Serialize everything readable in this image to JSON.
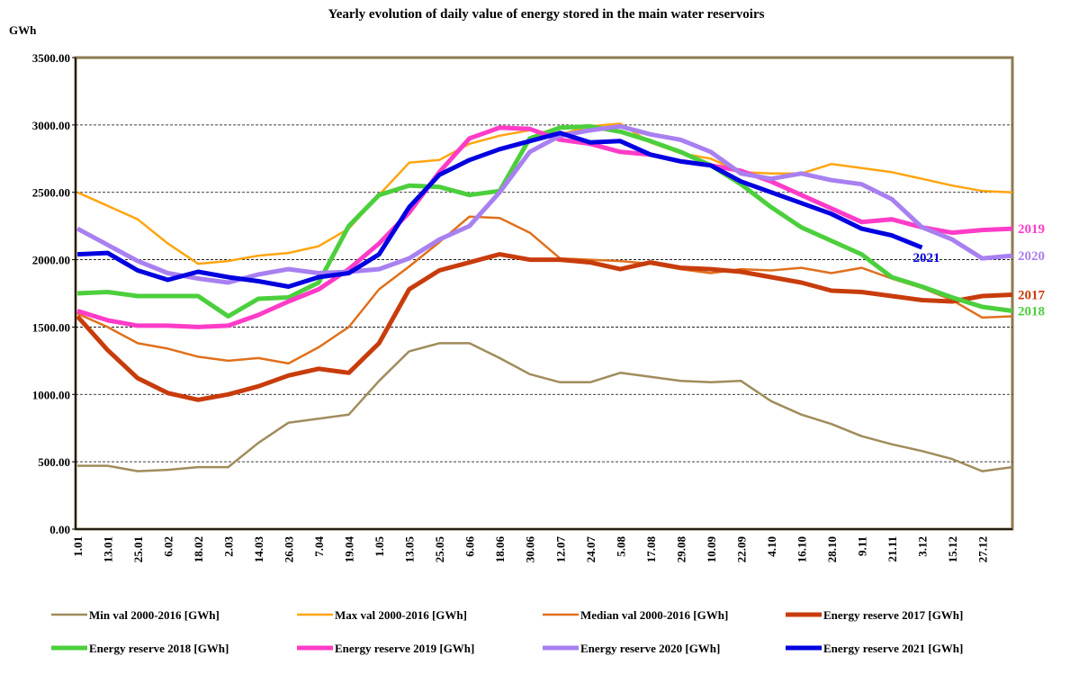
{
  "chart_data": {
    "type": "line",
    "title": "Yearly evolution of daily value of energy stored in the main water reservoirs",
    "y_label": "GWh",
    "categories": [
      "1.01",
      "13.01",
      "25.01",
      "6.02",
      "18.02",
      "2.03",
      "14.03",
      "26.03",
      "7.04",
      "19.04",
      "1.05",
      "13.05",
      "25.05",
      "6.06",
      "18.06",
      "30.06",
      "12.07",
      "24.07",
      "5.08",
      "17.08",
      "29.08",
      "10.09",
      "22.09",
      "4.10",
      "16.10",
      "28.10",
      "9.11",
      "21.11",
      "3.12",
      "15.12",
      "27.12",
      null
    ],
    "ylim": [
      0,
      3500
    ],
    "yticks": [
      {
        "value": 0,
        "label": "0.00"
      },
      {
        "value": 500,
        "label": "500.00"
      },
      {
        "value": 1000,
        "label": "1000.00"
      },
      {
        "value": 1500,
        "label": "1500.00"
      },
      {
        "value": 2000,
        "label": "2000.00"
      },
      {
        "value": 2500,
        "label": "2500.00"
      },
      {
        "value": 3000,
        "label": "3000.00"
      },
      {
        "value": 3500,
        "label": "3500.00"
      }
    ],
    "grid": true,
    "legend": "bottom",
    "series": [
      {
        "name": "Min val 2000-2016 [GWh]",
        "color": "#a08c5c",
        "line_width": 2.5,
        "values": [
          470,
          470,
          430,
          440,
          460,
          460,
          640,
          790,
          820,
          850,
          1100,
          1320,
          1380,
          1380,
          1270,
          1150,
          1090,
          1090,
          1160,
          1130,
          1100,
          1090,
          1100,
          950,
          850,
          780,
          690,
          630,
          580,
          520,
          430,
          460
        ]
      },
      {
        "name": "Max val 2000-2016 [GWh]",
        "color": "#ffa510",
        "line_width": 2.5,
        "values": [
          2500,
          2400,
          2300,
          2120,
          1970,
          1990,
          2030,
          2050,
          2100,
          2230,
          2480,
          2720,
          2740,
          2860,
          2920,
          2960,
          2930,
          2990,
          3010,
          2870,
          2790,
          2750,
          2650,
          2640,
          2640,
          2710,
          2680,
          2650,
          2600,
          2550,
          2510,
          2500
        ]
      },
      {
        "name": "Median val 2000-2016 [GWh]",
        "color": "#e0701c",
        "line_width": 2.5,
        "values": [
          1600,
          1500,
          1380,
          1340,
          1280,
          1250,
          1270,
          1230,
          1350,
          1500,
          1780,
          1950,
          2130,
          2320,
          2310,
          2200,
          2010,
          2000,
          1990,
          1970,
          1930,
          1900,
          1930,
          1920,
          1940,
          1900,
          1940,
          1860,
          1790,
          1700,
          1570,
          1580
        ]
      },
      {
        "name": "Energy reserve 2017 [GWh]",
        "color": "#c83c0c",
        "line_width": 5,
        "end_label": "2017",
        "values": [
          1580,
          1330,
          1120,
          1010,
          960,
          1000,
          1060,
          1140,
          1190,
          1160,
          1380,
          1780,
          1920,
          1980,
          2040,
          2000,
          2000,
          1980,
          1930,
          1980,
          1940,
          1930,
          1910,
          1870,
          1830,
          1770,
          1760,
          1730,
          1700,
          1690,
          1730,
          1740
        ]
      },
      {
        "name": "Energy reserve 2018 [GWh]",
        "color": "#4ccf3c",
        "line_width": 5,
        "end_label": "2018",
        "values": [
          1750,
          1760,
          1730,
          1730,
          1730,
          1580,
          1710,
          1720,
          1830,
          2250,
          2480,
          2550,
          2540,
          2480,
          2510,
          2900,
          2980,
          2990,
          2950,
          2880,
          2800,
          2700,
          2560,
          2390,
          2240,
          2140,
          2040,
          1870,
          1800,
          1720,
          1650,
          1620
        ]
      },
      {
        "name": "Energy reserve 2019 [GWh]",
        "color": "#ff3cc8",
        "line_width": 5,
        "end_label": "2019",
        "values": [
          1620,
          1550,
          1510,
          1510,
          1500,
          1510,
          1590,
          1690,
          1780,
          1930,
          2120,
          2350,
          2650,
          2900,
          2980,
          2970,
          2890,
          2860,
          2800,
          2780,
          2730,
          2700,
          2660,
          2580,
          2480,
          2380,
          2280,
          2300,
          2240,
          2200,
          2220,
          2230
        ]
      },
      {
        "name": "Energy reserve 2020 [GWh]",
        "color": "#a880f0",
        "line_width": 5,
        "end_label": "2020",
        "values": [
          2230,
          2110,
          1990,
          1900,
          1860,
          1830,
          1890,
          1930,
          1900,
          1910,
          1930,
          2010,
          2150,
          2250,
          2500,
          2800,
          2920,
          2960,
          2990,
          2930,
          2890,
          2800,
          2640,
          2600,
          2640,
          2590,
          2560,
          2450,
          2240,
          2150,
          2010,
          2030
        ]
      },
      {
        "name": "Energy reserve 2021 [GWh]",
        "color": "#0000e0",
        "line_width": 5,
        "end_label": "2021",
        "values": [
          2040,
          2050,
          1920,
          1850,
          1910,
          1870,
          1840,
          1800,
          1870,
          1900,
          2040,
          2390,
          2630,
          2740,
          2820,
          2880,
          2940,
          2870,
          2880,
          2780,
          2730,
          2700,
          2580,
          2500,
          2420,
          2340,
          2230,
          2180,
          2090,
          null,
          null,
          null
        ]
      }
    ]
  }
}
